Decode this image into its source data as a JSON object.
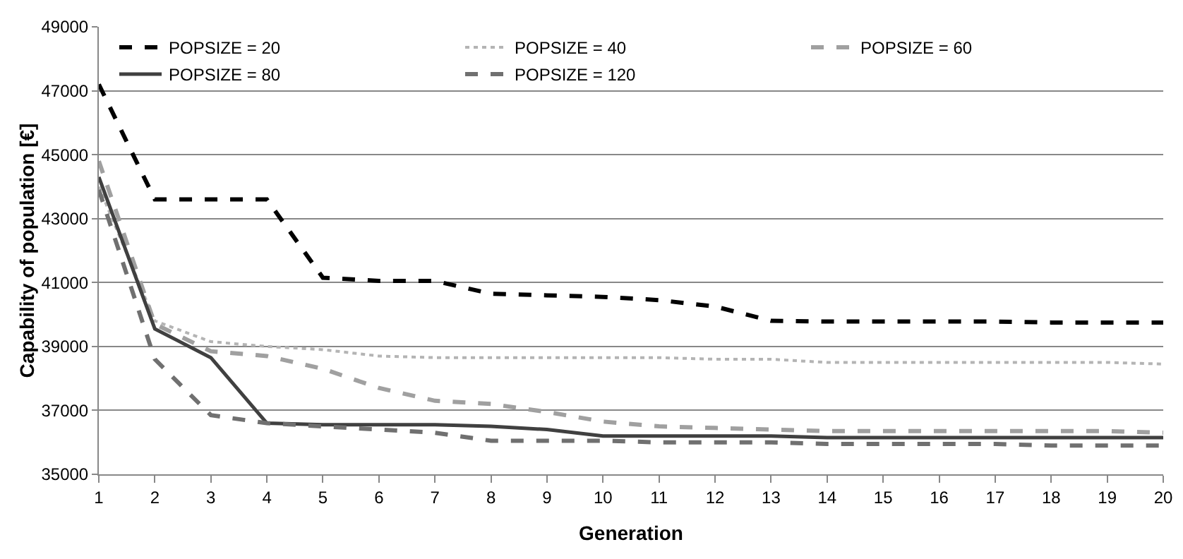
{
  "chart_data": {
    "type": "line",
    "xlabel": "Generation",
    "ylabel": "Capability of population [€]",
    "x": [
      1,
      2,
      3,
      4,
      5,
      6,
      7,
      8,
      9,
      10,
      11,
      12,
      13,
      14,
      15,
      16,
      17,
      18,
      19,
      20
    ],
    "xlim": [
      1,
      20
    ],
    "xticks": [
      1,
      2,
      3,
      4,
      5,
      6,
      7,
      8,
      9,
      10,
      11,
      12,
      13,
      14,
      15,
      16,
      17,
      18,
      19,
      20
    ],
    "ylim": [
      35000,
      49000
    ],
    "yticks": [
      35000,
      37000,
      39000,
      41000,
      43000,
      45000,
      47000,
      49000
    ],
    "grid": "y",
    "legend": "top",
    "marker": "none",
    "series": [
      {
        "name": "POPSIZE = 20",
        "color": "#000000",
        "line_style": "dashed",
        "values": [
          47200,
          43600,
          43600,
          43600,
          41150,
          41050,
          41050,
          40650,
          40600,
          40550,
          40450,
          40250,
          39800,
          39780,
          39780,
          39780,
          39780,
          39750,
          39750,
          39750
        ]
      },
      {
        "name": "POPSIZE = 40",
        "color": "#b4b4b4",
        "line_style": "dotted",
        "values": [
          44000,
          39800,
          39150,
          39000,
          38900,
          38700,
          38650,
          38650,
          38650,
          38650,
          38650,
          38600,
          38600,
          38500,
          38500,
          38500,
          38500,
          38500,
          38500,
          38450
        ]
      },
      {
        "name": "POPSIZE = 60",
        "color": "#a0a0a0",
        "line_style": "dashed",
        "values": [
          44800,
          39700,
          38850,
          38700,
          38300,
          37700,
          37300,
          37200,
          36950,
          36650,
          36500,
          36450,
          36400,
          36350,
          36350,
          36350,
          36350,
          36350,
          36350,
          36300
        ]
      },
      {
        "name": "POPSIZE = 80",
        "color": "#404040",
        "line_style": "solid",
        "values": [
          44300,
          39550,
          38650,
          36600,
          36550,
          36550,
          36550,
          36500,
          36400,
          36200,
          36200,
          36200,
          36200,
          36150,
          36150,
          36150,
          36150,
          36150,
          36150,
          36150
        ]
      },
      {
        "name": "POPSIZE = 120",
        "color": "#707070",
        "line_style": "dashed",
        "values": [
          43900,
          38600,
          36850,
          36600,
          36500,
          36400,
          36300,
          36050,
          36050,
          36050,
          36000,
          36000,
          36000,
          35950,
          35950,
          35950,
          35950,
          35900,
          35900,
          35900
        ]
      }
    ]
  }
}
